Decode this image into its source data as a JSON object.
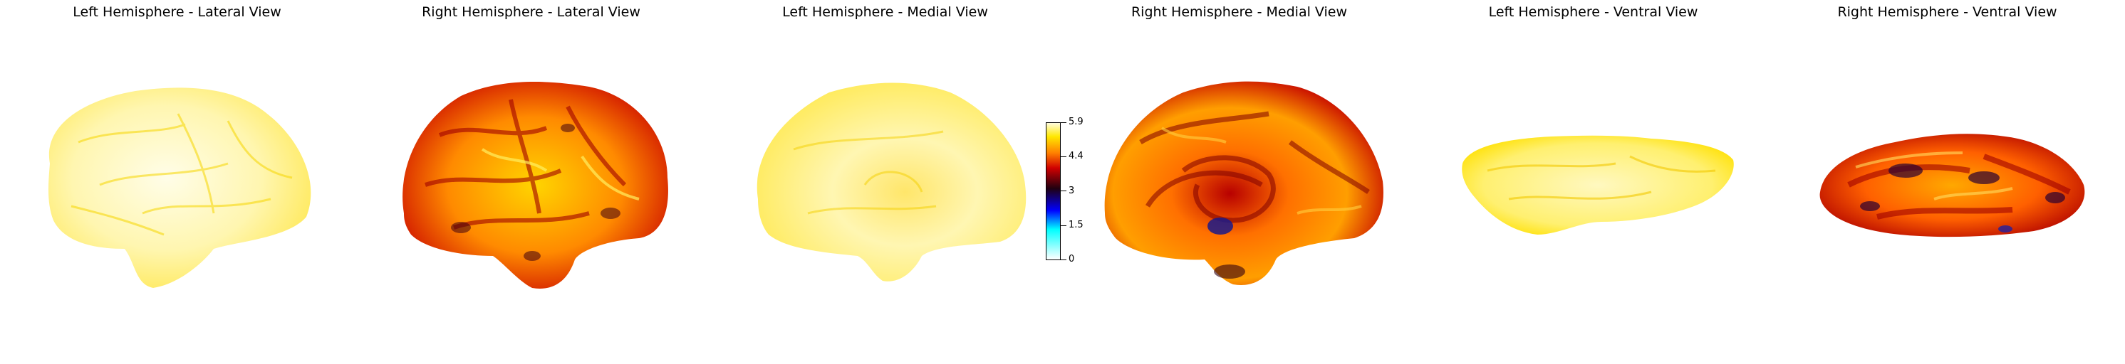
{
  "panels": [
    {
      "title": "Left Hemisphere - Lateral View",
      "intensity": "low"
    },
    {
      "title": "Right Hemisphere - Lateral View",
      "intensity": "high"
    },
    {
      "title": "Left Hemisphere - Medial View",
      "intensity": "low"
    },
    {
      "title": "Right Hemisphere - Medial View",
      "intensity": "high"
    },
    {
      "title": "Left Hemisphere - Ventral View",
      "intensity": "low"
    },
    {
      "title": "Right Hemisphere - Ventral View",
      "intensity": "high"
    }
  ],
  "colorbar": {
    "ticks": [
      "5.9",
      "4.4",
      "3",
      "1.5",
      "0"
    ],
    "min": 0,
    "max": 5.9,
    "colors": {
      "top": "#fffde0",
      "yellow": "#ffe800",
      "orange": "#ff8000",
      "red": "#d00000",
      "dark": "#200010",
      "mid": "#0000ff",
      "cyan": "#00ffff",
      "bottom": "#ffffff"
    }
  }
}
